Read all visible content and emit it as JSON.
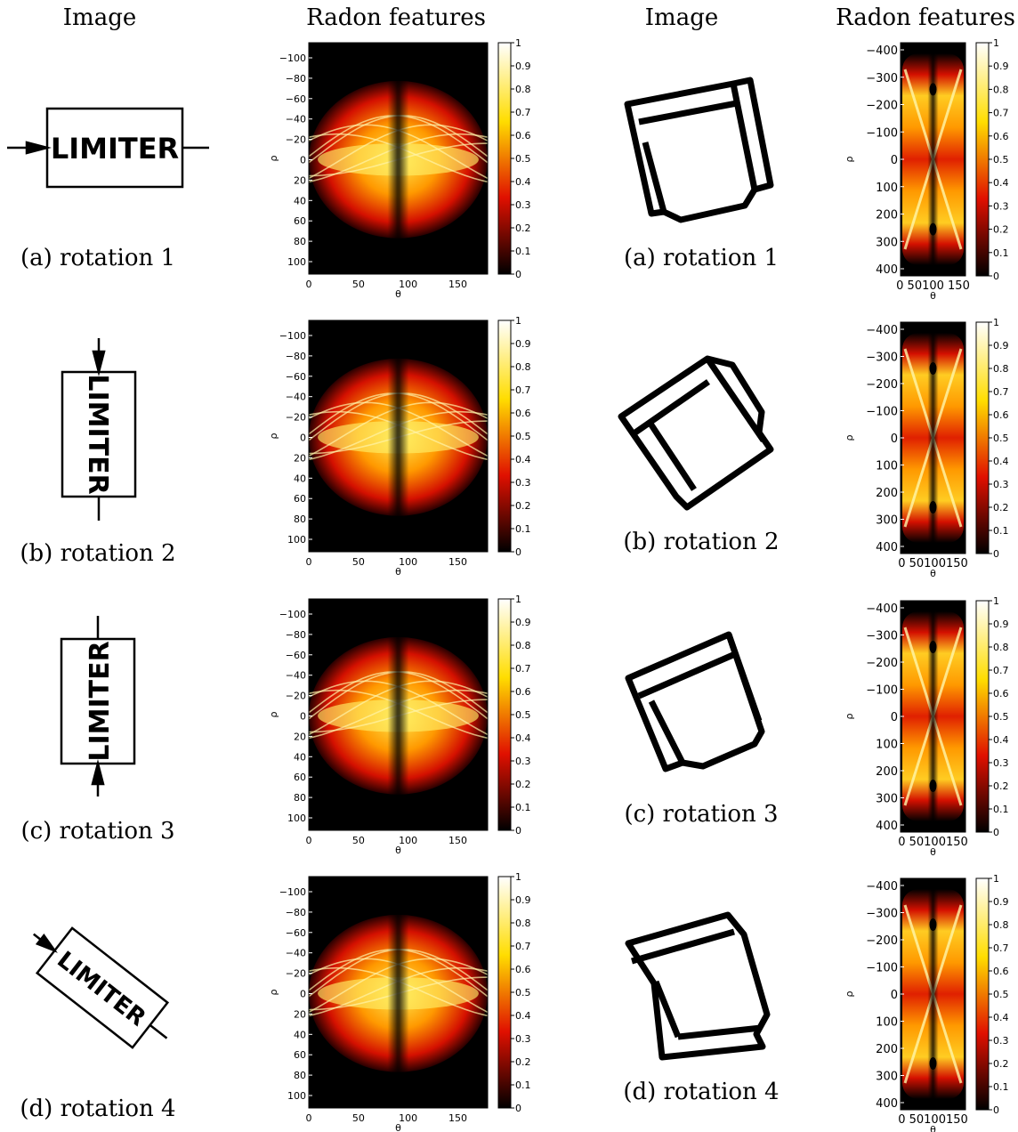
{
  "headers": {
    "col1": "Image",
    "col2": "Radon features",
    "col3": "Image",
    "col4": "Radon features"
  },
  "left_caption": [
    "(a) rotation 1",
    "(b) rotation 2",
    "(c) rotation 3",
    "(d) rotation 4"
  ],
  "right_caption": [
    "(a) rotation 1",
    "(b) rotation 2",
    "(c) rotation 3",
    "(d) rotation 4"
  ],
  "limiter_text": "LIMITER",
  "left_plot": {
    "xlabel": "θ",
    "ylabel": "ρ",
    "xticks": [
      "0",
      "50",
      "100",
      "150"
    ],
    "yticks": [
      "−100",
      "−80",
      "−60",
      "−40",
      "−20",
      "0",
      "20",
      "40",
      "60",
      "80",
      "100"
    ]
  },
  "right_plot": {
    "xlabel": "θ",
    "ylabel": "ρ",
    "xticks_row1": "0 50100 150",
    "xticks_other": "0 50100150",
    "yticks": [
      "−400",
      "−300",
      "−200",
      "−100",
      "0",
      "100",
      "200",
      "300",
      "400"
    ]
  },
  "colorbar_ticks": [
    "1",
    "0.9",
    "0.8",
    "0.7",
    "0.6",
    "0.5",
    "0.4",
    "0.3",
    "0.2",
    "0.1",
    "0"
  ],
  "colors": {
    "hot_dark": "#000000",
    "hot_red": "#e01000",
    "hot_orange": "#ff8800",
    "hot_yellow": "#ffee33",
    "hot_white": "#ffffff"
  }
}
